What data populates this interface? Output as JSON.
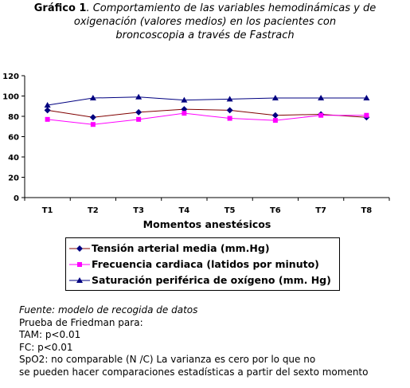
{
  "title": {
    "bold": "Gráfico 1",
    "line1": ". Comportamiento de las variables hemodinámicas y de",
    "line2": "oxigenación (valores medios) en los pacientes con",
    "line3": "broncoscopia a través de Fastrach"
  },
  "chart_data": {
    "type": "line",
    "title": "Gráfico 1. Comportamiento de las variables hemodinámicas y de oxigenación (valores medios) en los pacientes con broncoscopia a través de Fastrach",
    "xlabel": "Momentos anestésicos",
    "ylabel": "",
    "categories": [
      "T1",
      "T2",
      "T3",
      "T4",
      "T5",
      "T6",
      "T7",
      "T8"
    ],
    "ylim": [
      0,
      120
    ],
    "yticks": [
      0,
      20,
      40,
      60,
      80,
      100,
      120
    ],
    "grid": false,
    "legend_position": "bottom",
    "series": [
      {
        "name": "Tensión arterial media (mm.Hg)",
        "values": [
          86,
          79,
          84,
          87,
          86,
          81,
          82,
          79
        ],
        "line_color": "#800000",
        "marker_color": "#000080",
        "marker": "diamond"
      },
      {
        "name": "Frecuencia cardiaca (latidos por minuto)",
        "values": [
          77,
          72,
          77,
          83,
          78,
          76,
          81,
          81
        ],
        "line_color": "#ff00ff",
        "marker_color": "#ff00ff",
        "marker": "square"
      },
      {
        "name": "Saturación periférica de oxígeno (mm. Hg)",
        "values": [
          91,
          98,
          99,
          96,
          97,
          98,
          98,
          98
        ],
        "line_color": "#000080",
        "marker_color": "#000080",
        "marker": "triangle"
      }
    ]
  },
  "notes": {
    "source": "Fuente: modelo de recogida de datos",
    "lines": [
      "Prueba de Friedman para:",
      "TAM: p<0.01",
      "FC: p<0.01",
      "SpO2:  no comparable (N /C) La varianza es cero por lo que no",
      "se pueden hacer comparaciones estadísticas a partir del sexto momento"
    ]
  }
}
